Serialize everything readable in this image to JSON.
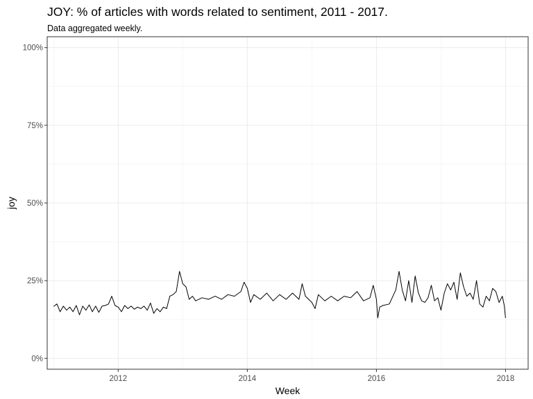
{
  "chart_data": {
    "type": "line",
    "title": "JOY: % of articles with words related to sentiment, 2011 - 2017.",
    "subtitle": "Data aggregated weekly.",
    "xlabel": "Week",
    "ylabel": "joy",
    "x_range": [
      2010.9,
      2018.35
    ],
    "ylim": [
      -0.035,
      1.035
    ],
    "x_ticks": [
      2012,
      2014,
      2016,
      2018
    ],
    "x_tick_labels": [
      "2012",
      "2014",
      "2016",
      "2018"
    ],
    "y_ticks": [
      0,
      0.25,
      0.5,
      0.75,
      1.0
    ],
    "y_tick_labels": [
      "0%",
      "25%",
      "50%",
      "75%",
      "100%"
    ],
    "grid": true,
    "series": [
      {
        "color": "#000000",
        "points": [
          [
            2011.0,
            0.167
          ],
          [
            2011.05,
            0.175
          ],
          [
            2011.1,
            0.15
          ],
          [
            2011.15,
            0.168
          ],
          [
            2011.2,
            0.155
          ],
          [
            2011.25,
            0.165
          ],
          [
            2011.3,
            0.15
          ],
          [
            2011.35,
            0.17
          ],
          [
            2011.4,
            0.14
          ],
          [
            2011.45,
            0.168
          ],
          [
            2011.5,
            0.155
          ],
          [
            2011.55,
            0.172
          ],
          [
            2011.6,
            0.15
          ],
          [
            2011.65,
            0.168
          ],
          [
            2011.7,
            0.148
          ],
          [
            2011.75,
            0.168
          ],
          [
            2011.8,
            0.17
          ],
          [
            2011.85,
            0.175
          ],
          [
            2011.9,
            0.2
          ],
          [
            2011.95,
            0.17
          ],
          [
            2012.0,
            0.165
          ],
          [
            2012.05,
            0.15
          ],
          [
            2012.1,
            0.17
          ],
          [
            2012.15,
            0.16
          ],
          [
            2012.2,
            0.168
          ],
          [
            2012.25,
            0.158
          ],
          [
            2012.3,
            0.165
          ],
          [
            2012.35,
            0.16
          ],
          [
            2012.4,
            0.168
          ],
          [
            2012.45,
            0.155
          ],
          [
            2012.5,
            0.178
          ],
          [
            2012.55,
            0.145
          ],
          [
            2012.6,
            0.16
          ],
          [
            2012.65,
            0.15
          ],
          [
            2012.7,
            0.165
          ],
          [
            2012.75,
            0.16
          ],
          [
            2012.8,
            0.2
          ],
          [
            2012.85,
            0.205
          ],
          [
            2012.9,
            0.215
          ],
          [
            2012.95,
            0.28
          ],
          [
            2013.0,
            0.24
          ],
          [
            2013.05,
            0.23
          ],
          [
            2013.1,
            0.19
          ],
          [
            2013.15,
            0.2
          ],
          [
            2013.2,
            0.185
          ],
          [
            2013.3,
            0.195
          ],
          [
            2013.4,
            0.19
          ],
          [
            2013.5,
            0.2
          ],
          [
            2013.6,
            0.19
          ],
          [
            2013.7,
            0.205
          ],
          [
            2013.8,
            0.2
          ],
          [
            2013.9,
            0.215
          ],
          [
            2013.95,
            0.245
          ],
          [
            2014.0,
            0.225
          ],
          [
            2014.05,
            0.18
          ],
          [
            2014.1,
            0.205
          ],
          [
            2014.2,
            0.19
          ],
          [
            2014.3,
            0.21
          ],
          [
            2014.4,
            0.185
          ],
          [
            2014.5,
            0.205
          ],
          [
            2014.6,
            0.19
          ],
          [
            2014.7,
            0.21
          ],
          [
            2014.8,
            0.19
          ],
          [
            2014.85,
            0.24
          ],
          [
            2014.9,
            0.2
          ],
          [
            2015.0,
            0.18
          ],
          [
            2015.05,
            0.16
          ],
          [
            2015.1,
            0.205
          ],
          [
            2015.2,
            0.185
          ],
          [
            2015.3,
            0.2
          ],
          [
            2015.4,
            0.185
          ],
          [
            2015.5,
            0.2
          ],
          [
            2015.6,
            0.195
          ],
          [
            2015.7,
            0.215
          ],
          [
            2015.8,
            0.185
          ],
          [
            2015.9,
            0.195
          ],
          [
            2015.95,
            0.235
          ],
          [
            2016.0,
            0.19
          ],
          [
            2016.02,
            0.13
          ],
          [
            2016.05,
            0.165
          ],
          [
            2016.1,
            0.17
          ],
          [
            2016.2,
            0.175
          ],
          [
            2016.3,
            0.22
          ],
          [
            2016.35,
            0.28
          ],
          [
            2016.4,
            0.22
          ],
          [
            2016.45,
            0.185
          ],
          [
            2016.5,
            0.25
          ],
          [
            2016.55,
            0.18
          ],
          [
            2016.6,
            0.265
          ],
          [
            2016.65,
            0.21
          ],
          [
            2016.7,
            0.185
          ],
          [
            2016.75,
            0.18
          ],
          [
            2016.8,
            0.195
          ],
          [
            2016.85,
            0.235
          ],
          [
            2016.9,
            0.185
          ],
          [
            2016.95,
            0.195
          ],
          [
            2017.0,
            0.155
          ],
          [
            2017.05,
            0.21
          ],
          [
            2017.1,
            0.24
          ],
          [
            2017.15,
            0.22
          ],
          [
            2017.2,
            0.245
          ],
          [
            2017.25,
            0.19
          ],
          [
            2017.3,
            0.275
          ],
          [
            2017.35,
            0.23
          ],
          [
            2017.4,
            0.2
          ],
          [
            2017.45,
            0.21
          ],
          [
            2017.5,
            0.19
          ],
          [
            2017.55,
            0.25
          ],
          [
            2017.6,
            0.175
          ],
          [
            2017.65,
            0.165
          ],
          [
            2017.7,
            0.2
          ],
          [
            2017.75,
            0.185
          ],
          [
            2017.8,
            0.225
          ],
          [
            2017.85,
            0.215
          ],
          [
            2017.9,
            0.18
          ],
          [
            2017.95,
            0.2
          ],
          [
            2017.98,
            0.17
          ],
          [
            2018.0,
            0.13
          ]
        ]
      }
    ]
  }
}
